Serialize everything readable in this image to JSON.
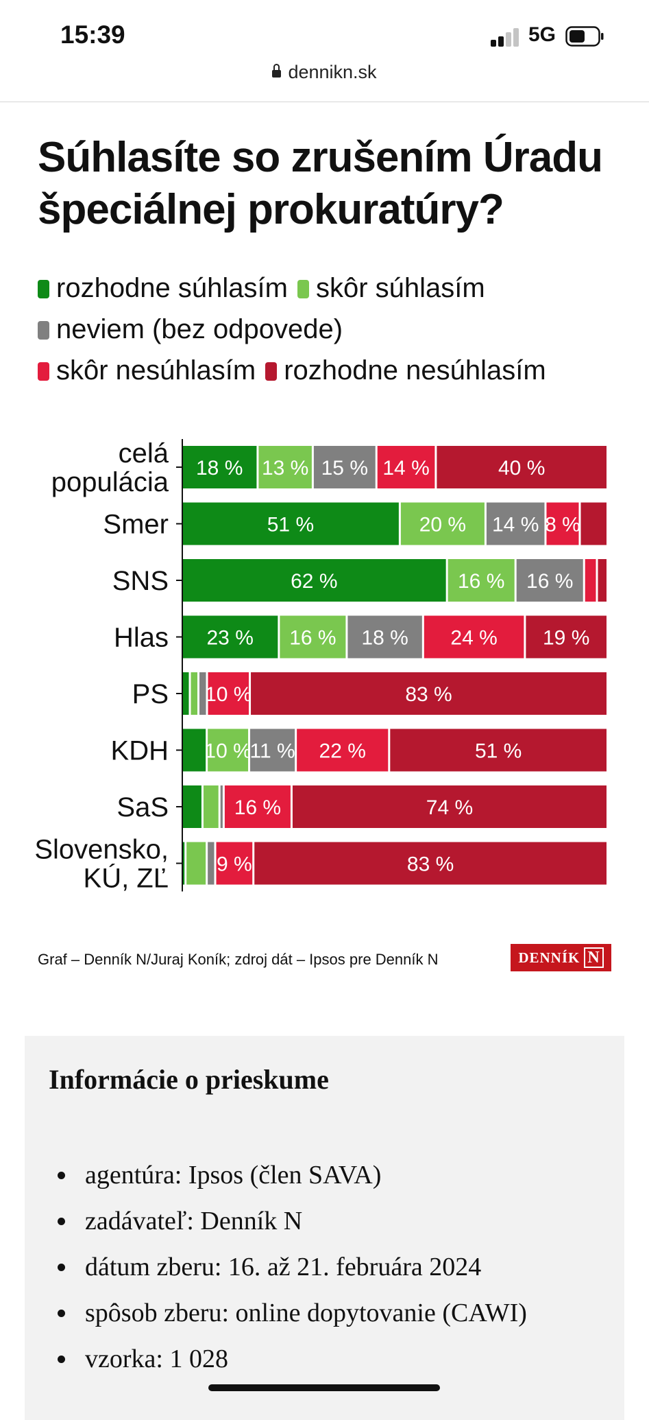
{
  "status_bar": {
    "time": "15:39",
    "network": "5G",
    "url": "dennikn.sk"
  },
  "chart_data": {
    "type": "bar",
    "orientation": "horizontal-stacked-100",
    "title": "Súhlasíte so zrušením Úradu špeciálnej prokuratúry?",
    "categories": [
      "celá populácia",
      "Smer",
      "SNS",
      "Hlas",
      "PS",
      "KDH",
      "SaS",
      "Slovensko, KÚ, ZĽ"
    ],
    "category_lines": [
      [
        "celá",
        "populácia"
      ],
      [
        "Smer"
      ],
      [
        "SNS"
      ],
      [
        "Hlas"
      ],
      [
        "PS"
      ],
      [
        "KDH"
      ],
      [
        "SaS"
      ],
      [
        "Slovensko,",
        "KÚ, ZĽ"
      ]
    ],
    "series": [
      {
        "name": "rozhodne súhlasím",
        "color": "#0e8a17",
        "values": [
          18,
          51,
          62,
          23,
          2,
          6,
          5,
          1
        ]
      },
      {
        "name": "skôr súhlasím",
        "color": "#7ac74f",
        "values": [
          13,
          20,
          16,
          16,
          2,
          10,
          4,
          5
        ]
      },
      {
        "name": "neviem (bez odpovede)",
        "color": "#808080",
        "values": [
          15,
          14,
          16,
          18,
          2,
          11,
          1,
          2
        ]
      },
      {
        "name": "skôr nesúhlasím",
        "color": "#e31c3d",
        "values": [
          14,
          8,
          3,
          24,
          10,
          22,
          16,
          9
        ]
      },
      {
        "name": "rozhodne nesúhlasím",
        "color": "#b5182f",
        "values": [
          40,
          6,
          2,
          19,
          83,
          51,
          74,
          83
        ]
      }
    ],
    "xlim": [
      0,
      100
    ],
    "unit": "%",
    "legend_position": "top",
    "grid": false,
    "source": "Graf – Denník N/Juraj Koník; zdroj dát – Ipsos pre Denník N"
  },
  "legend_rows": [
    [
      0,
      1
    ],
    [
      2
    ],
    [
      3,
      4
    ]
  ],
  "logo_text": {
    "word": "DENNÍK",
    "letter": "N"
  },
  "info": {
    "heading": "Informácie o prieskume",
    "items": [
      "agentúra: Ipsos (člen SAVA)",
      "zadávateľ: Denník N",
      "dátum zberu: 16. až 21. februára 2024",
      "spôsob zberu: online dopytovanie (CAWI)",
      "vzorka: 1 028"
    ]
  }
}
